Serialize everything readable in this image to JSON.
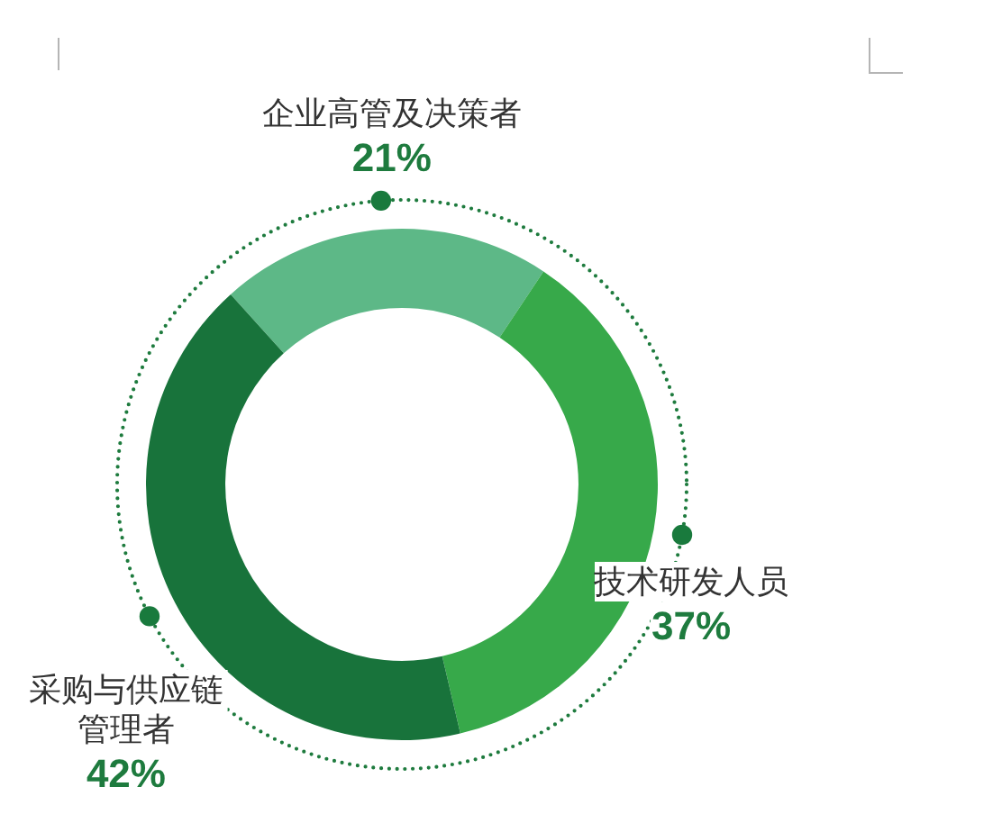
{
  "chart_data": {
    "type": "donut",
    "categories": [
      "企业高管及决策者",
      "技术研发人员",
      "采购与供应链管理者"
    ],
    "values": [
      21,
      37,
      42
    ],
    "value_labels": [
      "21%",
      "37%",
      "42%"
    ],
    "colors": [
      "#5db887",
      "#37a94a",
      "#18733b"
    ]
  }
}
